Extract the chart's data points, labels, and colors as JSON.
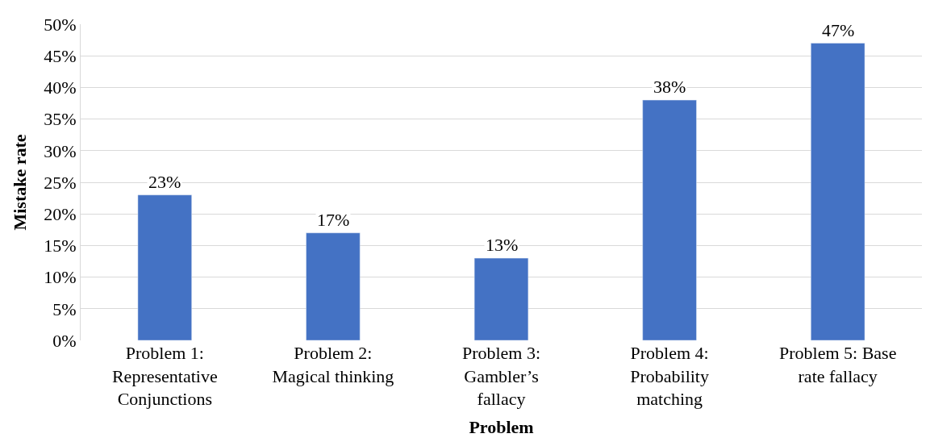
{
  "chart_data": {
    "type": "bar",
    "xlabel": "Problem",
    "ylabel": "Mistake rate",
    "categories": [
      "Problem 1: Representative Conjunctions",
      "Problem 2: Magical thinking",
      "Problem 3: Gambler’s fallacy",
      "Problem 4: Probability matching",
      "Problem 5: Base rate fallacy"
    ],
    "values": [
      23,
      17,
      13,
      38,
      47
    ],
    "value_labels": [
      "23%",
      "17%",
      "13%",
      "38%",
      "47%"
    ],
    "color": "#4472c4",
    "ylim": [
      0,
      50
    ],
    "yticks": [
      {
        "value": 0,
        "label": "0%"
      },
      {
        "value": 5,
        "label": "5%"
      },
      {
        "value": 10,
        "label": "10%"
      },
      {
        "value": 15,
        "label": "15%"
      },
      {
        "value": 20,
        "label": "20%"
      },
      {
        "value": 25,
        "label": "25%"
      },
      {
        "value": 30,
        "label": "30%"
      },
      {
        "value": 35,
        "label": "35%"
      },
      {
        "value": 40,
        "label": "40%"
      },
      {
        "value": 45,
        "label": "45%"
      },
      {
        "value": 50,
        "label": "50%"
      }
    ],
    "grid": "y"
  }
}
